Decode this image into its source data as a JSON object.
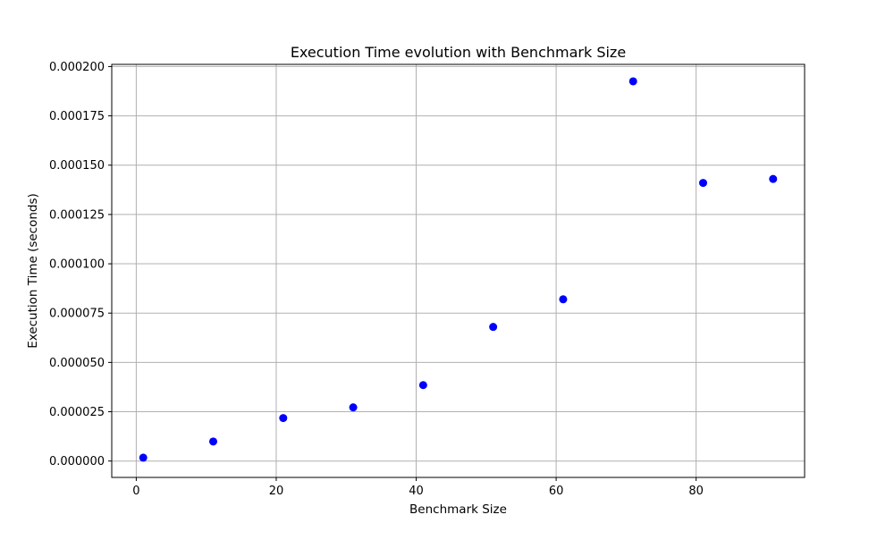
{
  "chart_data": {
    "type": "scatter",
    "title": "Execution Time evolution with Benchmark Size",
    "xlabel": "Benchmark Size",
    "ylabel": "Execution Time (seconds)",
    "x": [
      1,
      11,
      21,
      31,
      41,
      51,
      61,
      71,
      81,
      91
    ],
    "y": [
      1.7e-06,
      9.9e-06,
      2.18e-05,
      2.72e-05,
      3.85e-05,
      6.8e-05,
      8.2e-05,
      0.0001925,
      0.000141,
      0.000143
    ],
    "xlim": [
      -3.5,
      95.5
    ],
    "ylim": [
      -8.3e-06,
      0.0002011
    ],
    "xticks": [
      0,
      20,
      40,
      60,
      80
    ],
    "xtick_labels": [
      "0",
      "20",
      "40",
      "60",
      "80"
    ],
    "yticks": [
      0,
      2.5e-05,
      5e-05,
      7.5e-05,
      0.0001,
      0.000125,
      0.00015,
      0.000175,
      0.0002
    ],
    "ytick_labels": [
      "0.000000",
      "0.000025",
      "0.000050",
      "0.000075",
      "0.000100",
      "0.000125",
      "0.000150",
      "0.000175",
      "0.000200"
    ],
    "grid": true,
    "marker_color": "#0000ff",
    "grid_color": "#b0b0b0"
  }
}
